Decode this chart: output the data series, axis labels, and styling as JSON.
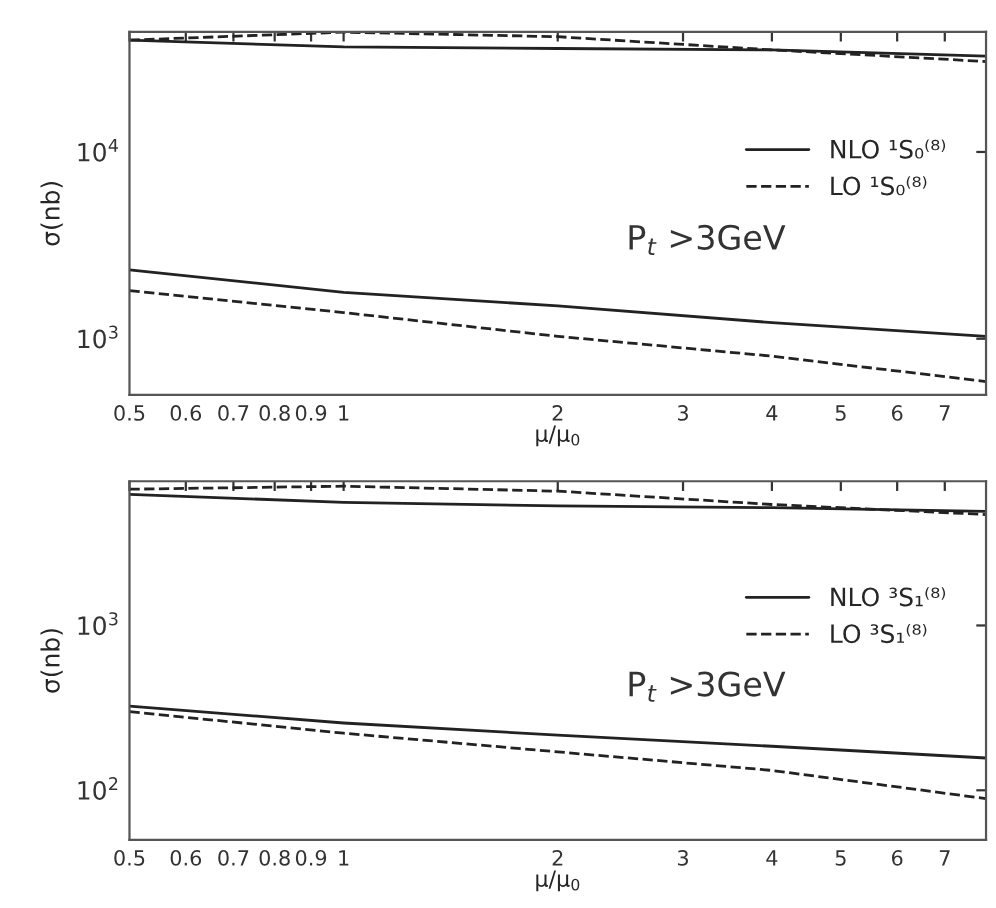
{
  "chart_data": [
    {
      "type": "line",
      "xlabel": "μ/μ$_{0}$",
      "ylabel": "σ(nb)",
      "log": "xy",
      "xlim": [
        0.5,
        8
      ],
      "ylim": [
        500,
        44000
      ],
      "xticks": [
        0.5,
        0.6,
        0.7,
        0.8,
        0.9,
        1,
        2,
        3,
        4,
        5,
        6,
        7
      ],
      "yticks": [
        {
          "value": 1000,
          "label": "10$^{3}$"
        },
        {
          "value": 10000,
          "label": "10$^{4}$"
        }
      ],
      "x": [
        0.5,
        1,
        2,
        4,
        8
      ],
      "series": [
        {
          "name": "NLO ¹S₀⁽⁸⁾",
          "color": "#222222",
          "line_style": "solid",
          "values": [
            39700,
            36500,
            35800,
            35200,
            32600
          ]
        },
        {
          "name": "LO ¹S₀⁽⁸⁾",
          "color": "#222222",
          "line_style": "dashed",
          "values": [
            39700,
            43800,
            41400,
            35200,
            30500
          ]
        },
        {
          "color": "#222222",
          "line_style": "solid",
          "values": [
            2340,
            1770,
            1500,
            1220,
            1030
          ]
        },
        {
          "color": "#222222",
          "line_style": "dashed",
          "values": [
            1810,
            1380,
            1030,
            807,
            590
          ]
        }
      ],
      "annotations": [
        "P$_{t}$ >3GeV"
      ],
      "legend": "right",
      "grid": false
    },
    {
      "type": "line",
      "xlabel": "μ/μ$_{0}$",
      "ylabel": "σ(nb)",
      "log": "xy",
      "xlim": [
        0.5,
        8
      ],
      "ylim": [
        50,
        7500
      ],
      "xticks": [
        0.5,
        0.6,
        0.7,
        0.8,
        0.9,
        1,
        2,
        3,
        4,
        5,
        6,
        7
      ],
      "yticks": [
        {
          "value": 100,
          "label": "10$^{2}$"
        },
        {
          "value": 1000,
          "label": "10$^{3}$"
        }
      ],
      "x": [
        0.5,
        1,
        2,
        4,
        8
      ],
      "series": [
        {
          "name": "NLO ³S₁⁽⁸⁾",
          "color": "#222222",
          "line_style": "solid",
          "values": [
            6250,
            5580,
            5320,
            5180,
            4930
          ]
        },
        {
          "name": "LO ³S₁⁽⁸⁾",
          "color": "#222222",
          "line_style": "dashed",
          "values": [
            6710,
            7000,
            6530,
            5420,
            4710
          ]
        },
        {
          "color": "#222222",
          "line_style": "solid",
          "values": [
            324,
            256,
            216,
            185,
            157
          ]
        },
        {
          "color": "#222222",
          "line_style": "dashed",
          "values": [
            300,
            222,
            171,
            132,
            89
          ]
        }
      ],
      "annotations": [
        "P$_{t}$ >3GeV"
      ],
      "legend": "right",
      "grid": false
    }
  ]
}
